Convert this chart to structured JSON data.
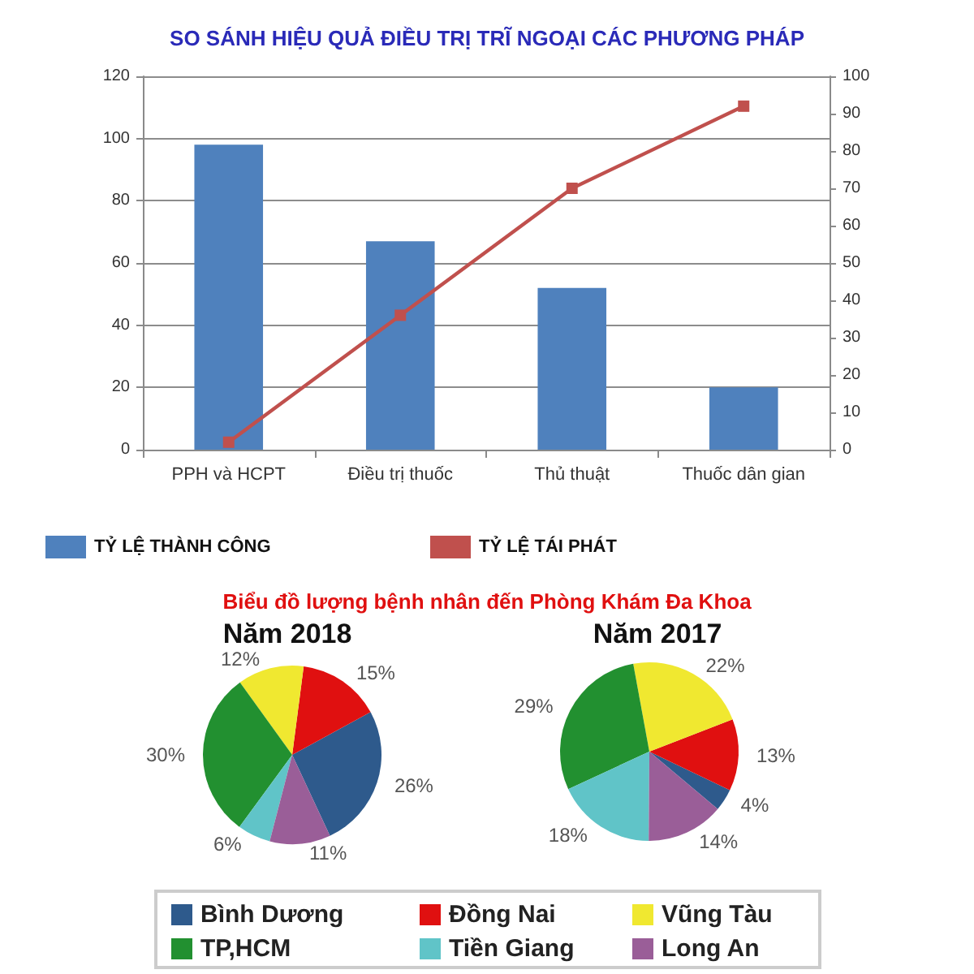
{
  "chart_data": [
    {
      "type": "bar",
      "title": "SO SÁNH HIỆU QUẢ ĐIỀU TRỊ TRĨ NGOẠI CÁC PHƯƠNG PHÁP",
      "categories": [
        "PPH và HCPT",
        "Điều trị thuốc",
        "Thủ thuật",
        "Thuốc dân gian"
      ],
      "series": [
        {
          "name": "TỶ LỆ THÀNH CÔNG",
          "color": "#4f81bd",
          "values": [
            98,
            67,
            52,
            20
          ]
        },
        {
          "name": "TỶ LỆ TÁI PHÁT",
          "type": "line",
          "axis": "y2",
          "color": "#c0504d",
          "values": [
            2,
            36,
            70,
            92
          ]
        }
      ],
      "ylim": [
        0,
        120
      ],
      "yticks": [
        0,
        20,
        40,
        60,
        80,
        100,
        120
      ],
      "y2lim": [
        0,
        100
      ],
      "y2ticks": [
        0,
        10,
        20,
        30,
        40,
        50,
        60,
        70,
        80,
        90,
        100
      ],
      "grid": "y",
      "legend": "bottom left",
      "marker": "square",
      "line_style": "solid"
    },
    {
      "type": "pie",
      "title": "Biểu đồ lượng bệnh nhân đến Phòng Khám Đa Khoa",
      "categories": [
        "Bình Dương",
        "Đồng Nai",
        "Vũng Tàu",
        "TP,HCM",
        "Tiền Giang",
        "Long An"
      ],
      "colors": [
        "#2e5a8c",
        "#e01010",
        "#f0e830",
        "#229030",
        "#60c4c8",
        "#9a5e98"
      ],
      "series": [
        {
          "name": "Năm 2018",
          "values": [
            26,
            15,
            12,
            30,
            6,
            11
          ],
          "value_labels": [
            "26%",
            "15%",
            "12%",
            "30%",
            "6%",
            "11%"
          ]
        },
        {
          "name": "Năm 2017",
          "values": [
            4,
            13,
            22,
            29,
            18,
            14
          ],
          "value_labels": [
            "4%",
            "13%",
            "22%",
            "29%",
            "18%",
            "14%"
          ]
        }
      ],
      "legend": "bottom"
    }
  ]
}
